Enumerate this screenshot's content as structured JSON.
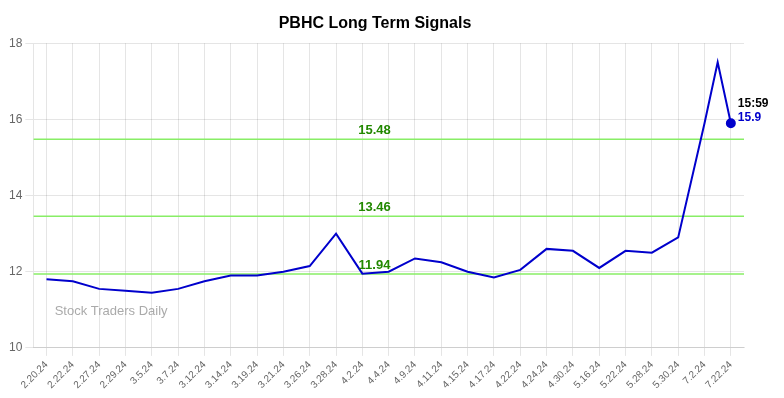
{
  "chart_data": {
    "type": "line",
    "title": "PBHC Long Term Signals",
    "watermark": "Stock Traders Daily",
    "x": [
      0,
      1,
      2,
      3,
      4,
      5,
      6,
      7,
      8,
      9,
      10,
      11,
      12,
      13,
      14,
      15,
      16,
      17,
      18,
      19,
      20,
      21,
      22,
      23,
      24,
      25,
      25.5,
      26
    ],
    "values": [
      11.8,
      11.75,
      11.55,
      11.5,
      11.45,
      11.55,
      11.75,
      11.9,
      11.9,
      12.0,
      12.15,
      13.0,
      11.95,
      12.0,
      12.35,
      12.25,
      12.0,
      11.85,
      12.05,
      12.6,
      12.55,
      12.1,
      12.55,
      12.5,
      12.9,
      15.9,
      17.5,
      15.9
    ],
    "color": "#0000cc",
    "xlim": [
      -0.5,
      26.5
    ],
    "xticks": [
      {
        "value": 0,
        "label": "2.20.24"
      },
      {
        "value": 1,
        "label": "2.22.24"
      },
      {
        "value": 2,
        "label": "2.27.24"
      },
      {
        "value": 3,
        "label": "2.29.24"
      },
      {
        "value": 4,
        "label": "3.5.24"
      },
      {
        "value": 5,
        "label": "3.7.24"
      },
      {
        "value": 6,
        "label": "3.12.24"
      },
      {
        "value": 7,
        "label": "3.14.24"
      },
      {
        "value": 8,
        "label": "3.19.24"
      },
      {
        "value": 9,
        "label": "3.21.24"
      },
      {
        "value": 10,
        "label": "3.26.24"
      },
      {
        "value": 11,
        "label": "3.28.24"
      },
      {
        "value": 12,
        "label": "4.2.24"
      },
      {
        "value": 13,
        "label": "4.4.24"
      },
      {
        "value": 14,
        "label": "4.9.24"
      },
      {
        "value": 15,
        "label": "4.11.24"
      },
      {
        "value": 16,
        "label": "4.15.24"
      },
      {
        "value": 17,
        "label": "4.17.24"
      },
      {
        "value": 18,
        "label": "4.22.24"
      },
      {
        "value": 19,
        "label": "4.24.24"
      },
      {
        "value": 20,
        "label": "4.30.24"
      },
      {
        "value": 21,
        "label": "5.16.24"
      },
      {
        "value": 22,
        "label": "5.22.24"
      },
      {
        "value": 23,
        "label": "5.28.24"
      },
      {
        "value": 24,
        "label": "5.30.24"
      },
      {
        "value": 25,
        "label": "7.2.24"
      },
      {
        "value": 26,
        "label": "7.22.24"
      }
    ],
    "ylim": [
      10,
      18
    ],
    "yticks": [
      10,
      12,
      14,
      16,
      18
    ],
    "grid": true,
    "hlines": [
      {
        "value": 11.94,
        "label": "11.94",
        "color": "#88ee66",
        "label_color": "#228800"
      },
      {
        "value": 13.46,
        "label": "13.46",
        "color": "#88ee66",
        "label_color": "#228800"
      },
      {
        "value": 15.48,
        "label": "15.48",
        "color": "#88ee66",
        "label_color": "#228800"
      }
    ],
    "annotations": [
      {
        "text": "15:59",
        "x": 26,
        "y": 15.9,
        "color": "#000000"
      },
      {
        "text": "15.9",
        "x": 26,
        "y": 15.9,
        "color": "#0000cc"
      }
    ]
  }
}
